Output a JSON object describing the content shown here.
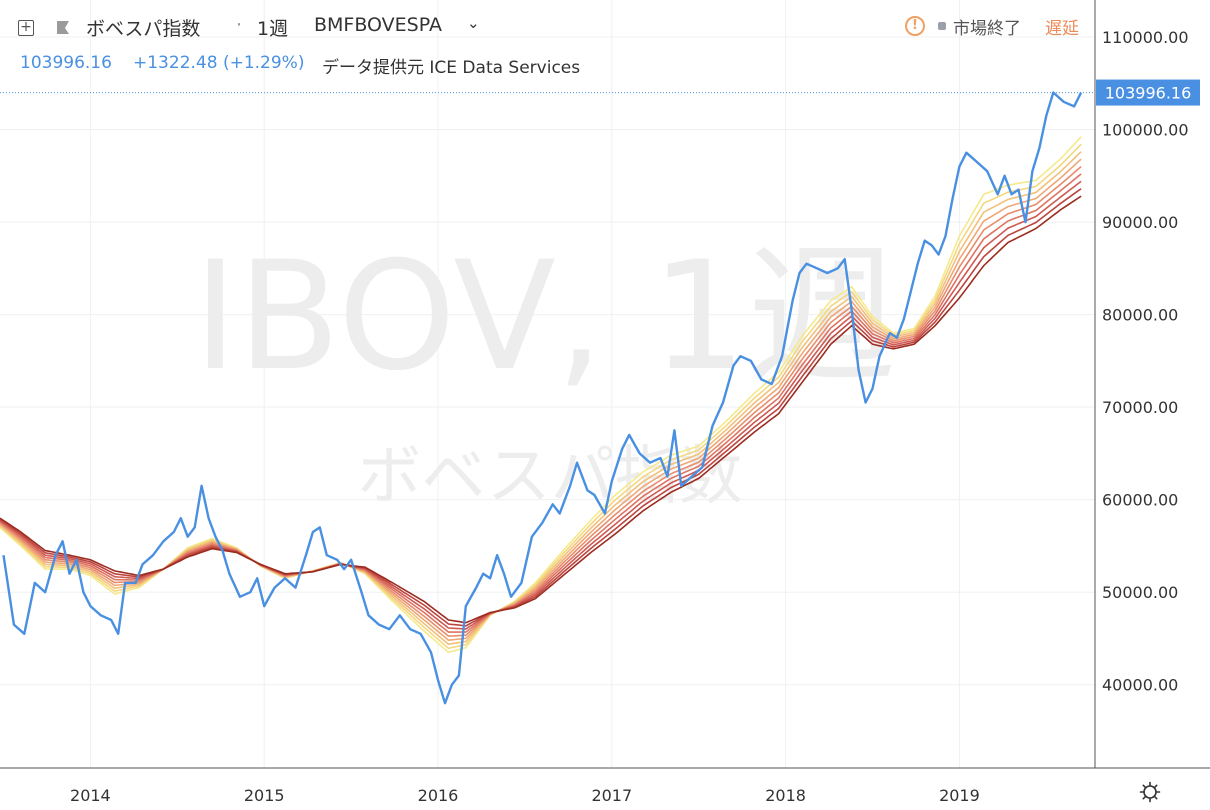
{
  "header": {
    "symbol_name": "ボベスパ指数",
    "dot": "·",
    "interval": "1週",
    "exchange": "BMFBOVESPA",
    "chevron": "⌄",
    "market_status": "市場終了",
    "delay_label": "遅延",
    "last_price": "103996.16",
    "change": "+1322.48 (+1.29%)",
    "data_source": "データ提供元 ICE Data Services",
    "plus_glyph": "+",
    "warn_glyph": "!"
  },
  "watermark": {
    "line1": "IBOV, 1週",
    "line2": "ボベスパ指数"
  },
  "price_label": "103996.16",
  "icons": [
    "plus-icon",
    "flag-icon",
    "warning-icon",
    "gear-icon"
  ],
  "colors": {
    "price": "#4a90e2",
    "ribbon_fast": "#f5e98c",
    "ribbon_slow": "#9c2c1f",
    "delay": "#ec8b5a"
  },
  "chart_data": {
    "type": "line",
    "title": "",
    "xlabel": "",
    "ylabel": "",
    "ylim": [
      31000,
      114000
    ],
    "grid": true,
    "y_ticks": [
      40000,
      50000,
      60000,
      70000,
      80000,
      90000,
      100000,
      110000
    ],
    "y_tick_labels": [
      "40000.00",
      "50000.00",
      "60000.00",
      "70000.00",
      "80000.00",
      "90000.00",
      "100000.00",
      "110000.00"
    ],
    "x_ticks": [
      2014,
      2015,
      2016,
      2017,
      2018,
      2019
    ],
    "x_tick_labels": [
      "2014",
      "2015",
      "2016",
      "2017",
      "2018",
      "2019"
    ],
    "xlim": [
      2013.48,
      2019.78
    ],
    "last_value": 103996.16,
    "series": [
      {
        "role": "price",
        "points": [
          [
            2013.5,
            54000
          ],
          [
            2013.56,
            46500
          ],
          [
            2013.62,
            45500
          ],
          [
            2013.68,
            51000
          ],
          [
            2013.74,
            50000
          ],
          [
            2013.8,
            54000
          ],
          [
            2013.84,
            55500
          ],
          [
            2013.88,
            52000
          ],
          [
            2013.92,
            53500
          ],
          [
            2013.96,
            50000
          ],
          [
            2014.0,
            48500
          ],
          [
            2014.06,
            47500
          ],
          [
            2014.12,
            47000
          ],
          [
            2014.16,
            45500
          ],
          [
            2014.2,
            51000
          ],
          [
            2014.26,
            51000
          ],
          [
            2014.3,
            53000
          ],
          [
            2014.36,
            54000
          ],
          [
            2014.42,
            55500
          ],
          [
            2014.48,
            56500
          ],
          [
            2014.52,
            58000
          ],
          [
            2014.56,
            56000
          ],
          [
            2014.6,
            57000
          ],
          [
            2014.64,
            61500
          ],
          [
            2014.68,
            58000
          ],
          [
            2014.72,
            56000
          ],
          [
            2014.76,
            54500
          ],
          [
            2014.8,
            52000
          ],
          [
            2014.86,
            49500
          ],
          [
            2014.92,
            50000
          ],
          [
            2014.96,
            51500
          ],
          [
            2015.0,
            48500
          ],
          [
            2015.06,
            50500
          ],
          [
            2015.12,
            51500
          ],
          [
            2015.18,
            50500
          ],
          [
            2015.24,
            54000
          ],
          [
            2015.28,
            56500
          ],
          [
            2015.32,
            57000
          ],
          [
            2015.36,
            54000
          ],
          [
            2015.42,
            53500
          ],
          [
            2015.46,
            52500
          ],
          [
            2015.5,
            53500
          ],
          [
            2015.56,
            50000
          ],
          [
            2015.6,
            47500
          ],
          [
            2015.66,
            46500
          ],
          [
            2015.72,
            46000
          ],
          [
            2015.78,
            47500
          ],
          [
            2015.84,
            46000
          ],
          [
            2015.9,
            45500
          ],
          [
            2015.96,
            43500
          ],
          [
            2016.0,
            40500
          ],
          [
            2016.04,
            38000
          ],
          [
            2016.08,
            40000
          ],
          [
            2016.12,
            41000
          ],
          [
            2016.16,
            48500
          ],
          [
            2016.22,
            50500
          ],
          [
            2016.26,
            52000
          ],
          [
            2016.3,
            51500
          ],
          [
            2016.34,
            54000
          ],
          [
            2016.38,
            52000
          ],
          [
            2016.42,
            49500
          ],
          [
            2016.48,
            51000
          ],
          [
            2016.54,
            56000
          ],
          [
            2016.6,
            57500
          ],
          [
            2016.66,
            59500
          ],
          [
            2016.7,
            58500
          ],
          [
            2016.76,
            61500
          ],
          [
            2016.8,
            64000
          ],
          [
            2016.86,
            61000
          ],
          [
            2016.9,
            60500
          ],
          [
            2016.96,
            58500
          ],
          [
            2017.0,
            62000
          ],
          [
            2017.06,
            65500
          ],
          [
            2017.1,
            67000
          ],
          [
            2017.16,
            65000
          ],
          [
            2017.22,
            64000
          ],
          [
            2017.28,
            64500
          ],
          [
            2017.32,
            62500
          ],
          [
            2017.36,
            67500
          ],
          [
            2017.4,
            61500
          ],
          [
            2017.46,
            62500
          ],
          [
            2017.52,
            63500
          ],
          [
            2017.58,
            68000
          ],
          [
            2017.64,
            70500
          ],
          [
            2017.7,
            74500
          ],
          [
            2017.74,
            75500
          ],
          [
            2017.8,
            75000
          ],
          [
            2017.86,
            73000
          ],
          [
            2017.92,
            72500
          ],
          [
            2017.98,
            75500
          ],
          [
            2018.04,
            81500
          ],
          [
            2018.08,
            84500
          ],
          [
            2018.12,
            85500
          ],
          [
            2018.18,
            85000
          ],
          [
            2018.24,
            84500
          ],
          [
            2018.3,
            85000
          ],
          [
            2018.34,
            86000
          ],
          [
            2018.38,
            80500
          ],
          [
            2018.42,
            74000
          ],
          [
            2018.46,
            70500
          ],
          [
            2018.5,
            72000
          ],
          [
            2018.54,
            75500
          ],
          [
            2018.6,
            78000
          ],
          [
            2018.64,
            77500
          ],
          [
            2018.68,
            79500
          ],
          [
            2018.72,
            82500
          ],
          [
            2018.76,
            85500
          ],
          [
            2018.8,
            88000
          ],
          [
            2018.84,
            87500
          ],
          [
            2018.88,
            86500
          ],
          [
            2018.92,
            88500
          ],
          [
            2018.96,
            92500
          ],
          [
            2019.0,
            96000
          ],
          [
            2019.04,
            97500
          ],
          [
            2019.1,
            96500
          ],
          [
            2019.16,
            95500
          ],
          [
            2019.22,
            93000
          ],
          [
            2019.26,
            95000
          ],
          [
            2019.3,
            93000
          ],
          [
            2019.34,
            93500
          ],
          [
            2019.38,
            90000
          ],
          [
            2019.42,
            95500
          ],
          [
            2019.46,
            98000
          ],
          [
            2019.5,
            101500
          ],
          [
            2019.54,
            104000
          ],
          [
            2019.6,
            103000
          ],
          [
            2019.66,
            102500
          ],
          [
            2019.7,
            103996.16
          ]
        ]
      },
      {
        "role": "ribbon-fast",
        "points": [
          [
            2013.48,
            57000
          ],
          [
            2013.6,
            55000
          ],
          [
            2013.74,
            52500
          ],
          [
            2013.88,
            52500
          ],
          [
            2014.0,
            51800
          ],
          [
            2014.14,
            49800
          ],
          [
            2014.28,
            50500
          ],
          [
            2014.42,
            52500
          ],
          [
            2014.56,
            54800
          ],
          [
            2014.7,
            55800
          ],
          [
            2014.84,
            54800
          ],
          [
            2014.98,
            52800
          ],
          [
            2015.12,
            51500
          ],
          [
            2015.28,
            52300
          ],
          [
            2015.44,
            53200
          ],
          [
            2015.58,
            52000
          ],
          [
            2015.74,
            49000
          ],
          [
            2015.92,
            45800
          ],
          [
            2016.06,
            43500
          ],
          [
            2016.16,
            44000
          ],
          [
            2016.3,
            47500
          ],
          [
            2016.44,
            49000
          ],
          [
            2016.56,
            51000
          ],
          [
            2016.72,
            54500
          ],
          [
            2016.88,
            57800
          ],
          [
            2017.02,
            60500
          ],
          [
            2017.18,
            63000
          ],
          [
            2017.34,
            64800
          ],
          [
            2017.5,
            65800
          ],
          [
            2017.66,
            68500
          ],
          [
            2017.82,
            71500
          ],
          [
            2017.96,
            73800
          ],
          [
            2018.1,
            77800
          ],
          [
            2018.26,
            81500
          ],
          [
            2018.38,
            83000
          ],
          [
            2018.5,
            79800
          ],
          [
            2018.62,
            78000
          ],
          [
            2018.74,
            78500
          ],
          [
            2018.86,
            82000
          ],
          [
            2019.0,
            88500
          ],
          [
            2019.14,
            93000
          ],
          [
            2019.28,
            94000
          ],
          [
            2019.44,
            94500
          ],
          [
            2019.58,
            96800
          ],
          [
            2019.7,
            99200
          ]
        ]
      },
      {
        "role": "ribbon-slow",
        "points": [
          [
            2013.48,
            58000
          ],
          [
            2013.6,
            56500
          ],
          [
            2013.74,
            54500
          ],
          [
            2013.88,
            54000
          ],
          [
            2014.0,
            53500
          ],
          [
            2014.14,
            52300
          ],
          [
            2014.28,
            51800
          ],
          [
            2014.42,
            52500
          ],
          [
            2014.56,
            53800
          ],
          [
            2014.7,
            54700
          ],
          [
            2014.84,
            54300
          ],
          [
            2014.98,
            53000
          ],
          [
            2015.12,
            52000
          ],
          [
            2015.28,
            52200
          ],
          [
            2015.44,
            53000
          ],
          [
            2015.58,
            52700
          ],
          [
            2015.74,
            51000
          ],
          [
            2015.92,
            49000
          ],
          [
            2016.06,
            47000
          ],
          [
            2016.16,
            46700
          ],
          [
            2016.3,
            47800
          ],
          [
            2016.44,
            48300
          ],
          [
            2016.56,
            49300
          ],
          [
            2016.72,
            51800
          ],
          [
            2016.88,
            54300
          ],
          [
            2017.02,
            56300
          ],
          [
            2017.18,
            58800
          ],
          [
            2017.34,
            60800
          ],
          [
            2017.5,
            62300
          ],
          [
            2017.66,
            64800
          ],
          [
            2017.82,
            67300
          ],
          [
            2017.96,
            69300
          ],
          [
            2018.1,
            72800
          ],
          [
            2018.26,
            76800
          ],
          [
            2018.38,
            78800
          ],
          [
            2018.5,
            76800
          ],
          [
            2018.62,
            76300
          ],
          [
            2018.74,
            76800
          ],
          [
            2018.86,
            78800
          ],
          [
            2019.0,
            81800
          ],
          [
            2019.14,
            85300
          ],
          [
            2019.28,
            87800
          ],
          [
            2019.44,
            89300
          ],
          [
            2019.58,
            91300
          ],
          [
            2019.7,
            92800
          ]
        ]
      }
    ]
  }
}
